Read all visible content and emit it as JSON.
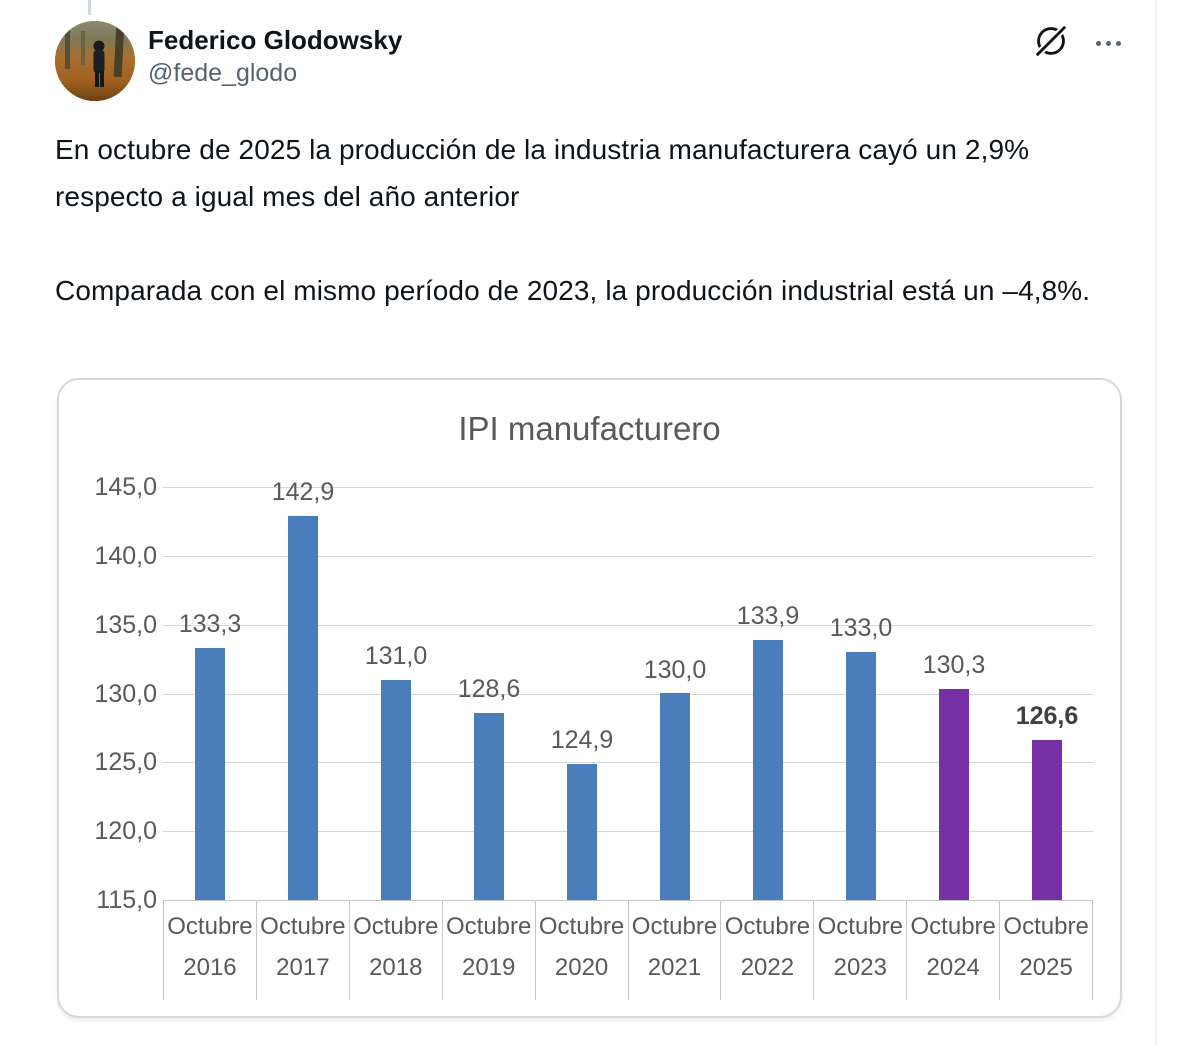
{
  "colors": {
    "text_primary": "#0f1419",
    "text_secondary": "#536471",
    "chart_text": "#595959",
    "chart_text_bold": "#404040",
    "gridline": "#d6d6d6",
    "axis_border": "#c4c8cb",
    "card_border": "#d3d9dd",
    "bar_blue": "#4a7ebb",
    "bar_purple": "#7530a5",
    "thread_line": "#cfd9de",
    "column_divider": "#eff3f4"
  },
  "tweet": {
    "author_name": "Federico Glodowsky",
    "author_handle": "@fede_glodo",
    "body_paragraphs": [
      "En octubre de 2025 la producción de la industria manufacturera cayó un 2,9% respecto a igual mes del año anterior",
      "Comparada con el mismo período de 2023, la producción industrial está un –4,8%."
    ]
  },
  "chart_data": {
    "type": "bar",
    "title": "IPI manufacturero",
    "categories": [
      "Octubre 2016",
      "Octubre 2017",
      "Octubre 2018",
      "Octubre 2019",
      "Octubre 2020",
      "Octubre 2021",
      "Octubre 2022",
      "Octubre 2023",
      "Octubre 2024",
      "Octubre 2025"
    ],
    "values": [
      133.3,
      142.9,
      131.0,
      128.6,
      124.9,
      130.0,
      133.9,
      133.0,
      130.3,
      126.6
    ],
    "value_labels": [
      "133,3",
      "142,9",
      "131,0",
      "128,6",
      "124,9",
      "130,0",
      "133,9",
      "133,0",
      "130,3",
      "126,6"
    ],
    "value_label_bold": [
      false,
      false,
      false,
      false,
      false,
      false,
      false,
      false,
      false,
      true
    ],
    "bar_colors": [
      "#4a7ebb",
      "#4a7ebb",
      "#4a7ebb",
      "#4a7ebb",
      "#4a7ebb",
      "#4a7ebb",
      "#4a7ebb",
      "#4a7ebb",
      "#7530a5",
      "#7530a5"
    ],
    "ylim": [
      115,
      145
    ],
    "ytick_step": 5,
    "ytick_labels": [
      "145,0",
      "140,0",
      "135,0",
      "130,0",
      "125,0",
      "120,0",
      "115,0"
    ],
    "xlabel": "",
    "ylabel": "",
    "grid": true,
    "legend": null
  }
}
